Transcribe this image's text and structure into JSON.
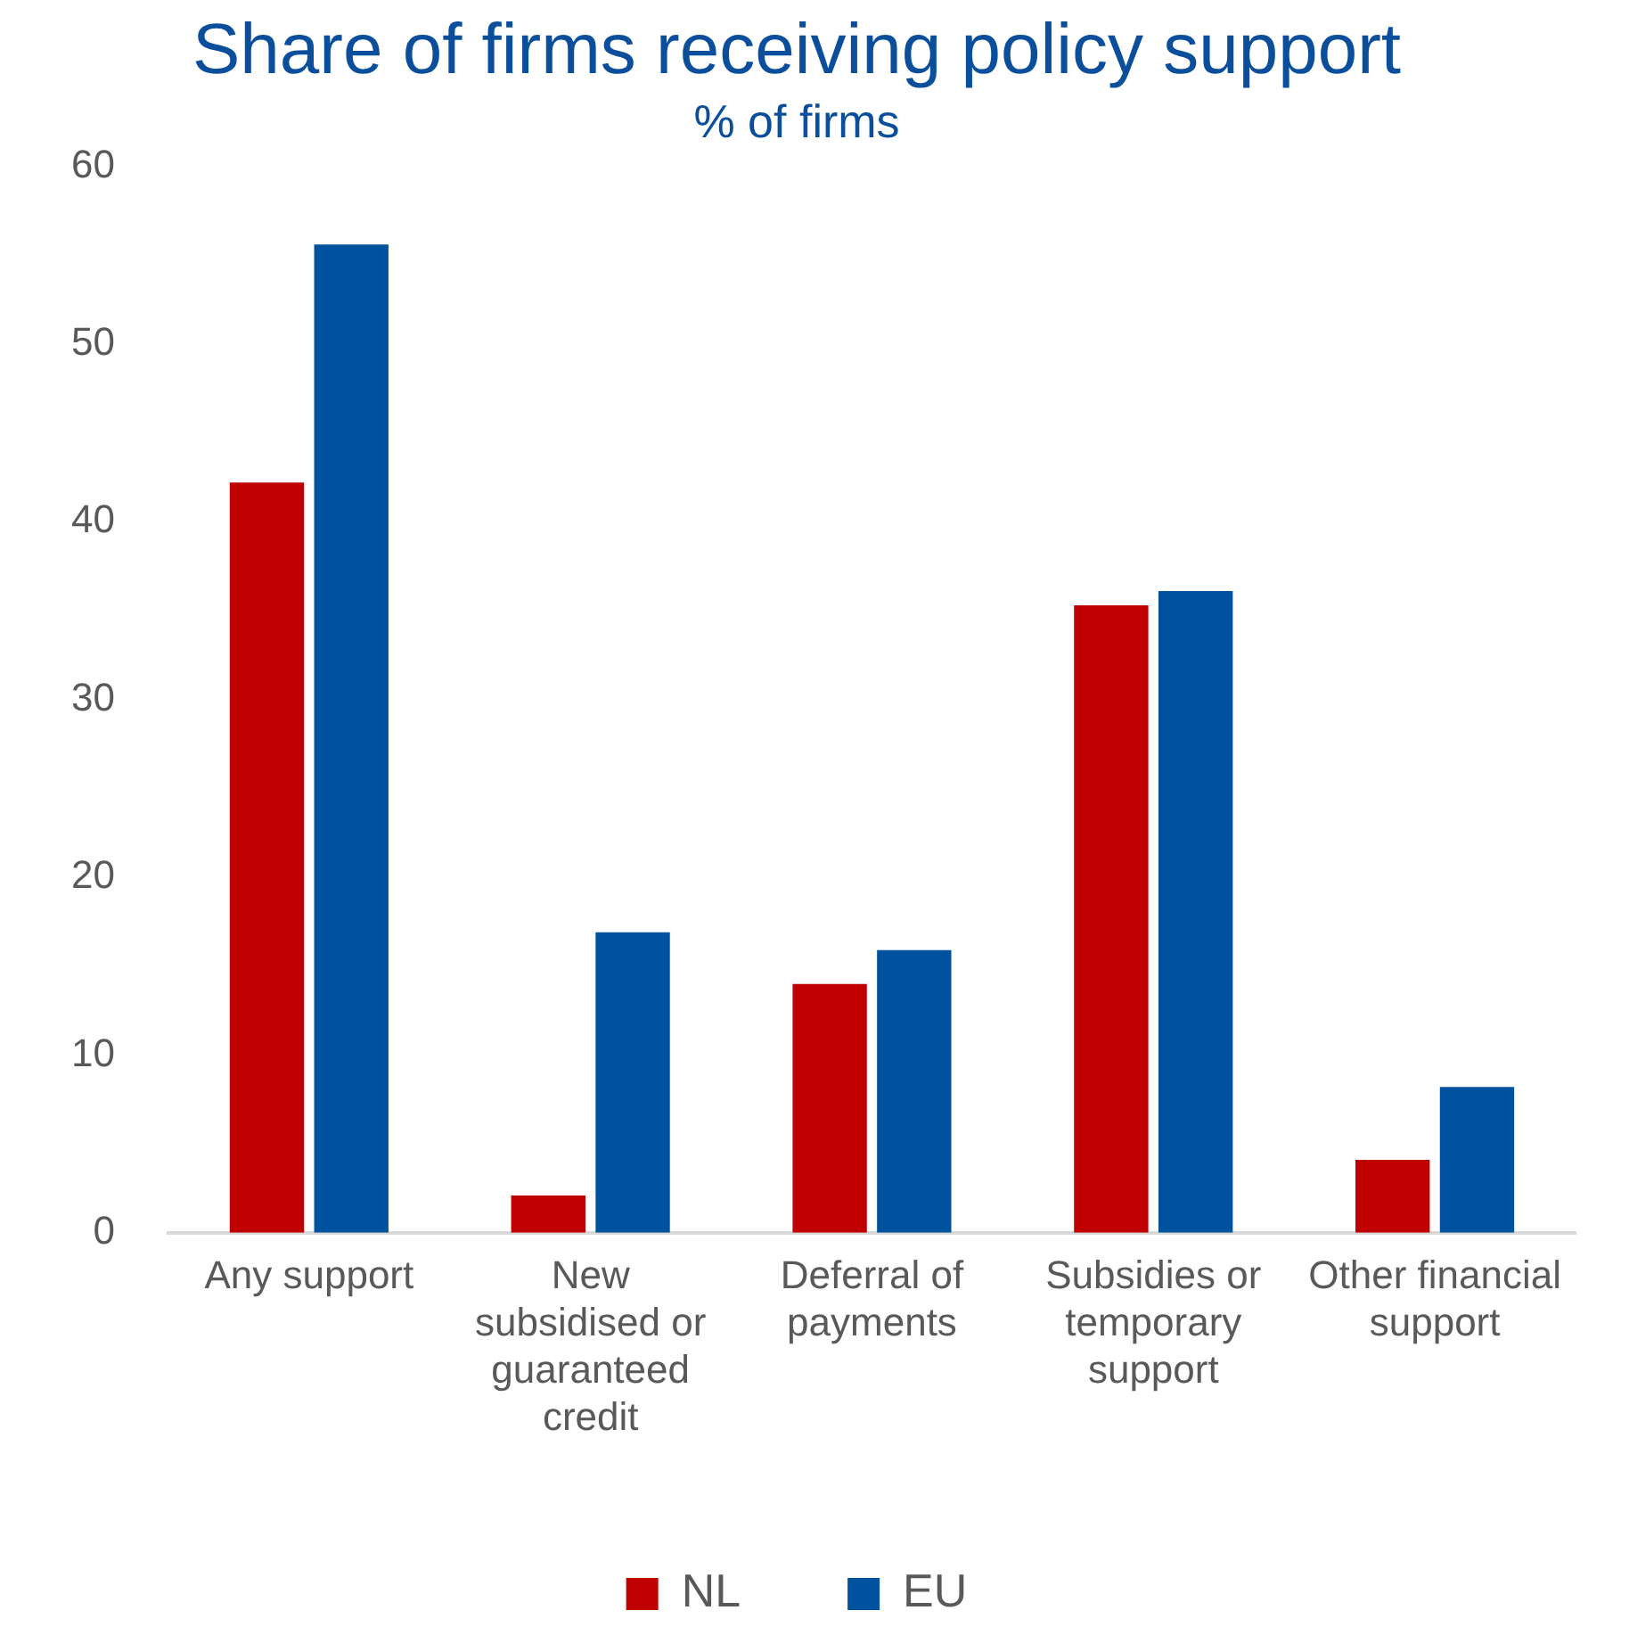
{
  "chart_data": {
    "type": "bar",
    "title": "Share of firms receiving policy support",
    "subtitle": "% of firms",
    "categories": [
      "Any support",
      "New subsidised or guaranteed credit",
      "Deferral of payments",
      "Subsidies or temporary support",
      "Other financial support"
    ],
    "series": [
      {
        "name": "NL",
        "color": "#c00000",
        "values": [
          42.2,
          2.1,
          14.0,
          35.3,
          4.1
        ]
      },
      {
        "name": "EU",
        "color": "#00529f",
        "values": [
          55.6,
          16.9,
          15.9,
          36.1,
          8.2
        ]
      }
    ],
    "ylim": [
      0,
      60
    ],
    "yticks": [
      0,
      10,
      20,
      30,
      40,
      50,
      60
    ],
    "grid": false,
    "legend": "bottom"
  }
}
